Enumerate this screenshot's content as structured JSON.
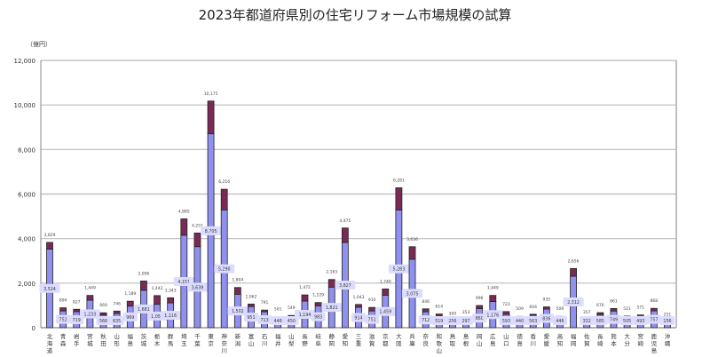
{
  "chart_data": {
    "type": "bar",
    "stacked": true,
    "title": "2023年都道府県別の住宅リフォーム市場規模の試算",
    "ylabel": "（億円）",
    "ylim": [
      0,
      12000
    ],
    "yticks": [
      "0",
      "2,000",
      "4,000",
      "6,000",
      "8,000",
      "10,000",
      "12,000"
    ],
    "grid": true,
    "colors": {
      "lower": "#9090f0",
      "upper": "#7a2a55",
      "label_box": "#dcdcff"
    },
    "categories": [
      "北海道",
      "青森",
      "岩手",
      "宮城",
      "秋田",
      "山形",
      "福島",
      "茨城",
      "栃木",
      "群馬",
      "埼玉",
      "千葉",
      "東京",
      "神奈川",
      "新潟",
      "富山",
      "石川",
      "福井",
      "山梨",
      "長野",
      "岐阜",
      "静岡",
      "愛知",
      "三重",
      "滋賀",
      "京都",
      "大阪",
      "兵庫",
      "奈良",
      "和歌山",
      "鳥取",
      "島根",
      "岡山",
      "広島",
      "山口",
      "徳島",
      "香川",
      "愛媛",
      "高知",
      "福岡",
      "佐賀",
      "長崎",
      "熊本",
      "大分",
      "宮崎",
      "鹿児島",
      "沖縄"
    ],
    "totals": [
      3829,
      894,
      827,
      1449,
      669,
      746,
      1189,
      2096,
      1442,
      1343,
      4885,
      4251,
      10175,
      6216,
      1804,
      1062,
      791,
      501,
      549,
      1472,
      1129,
      2163,
      4475,
      1043,
      910,
      1740,
      6281,
      3636,
      846,
      614,
      300,
      353,
      996,
      1449,
      723,
      509,
      604,
      935,
      509,
      2656,
      357,
      676,
      861,
      521,
      571,
      868,
      251
    ],
    "lower_values": [
      3524,
      752,
      719,
      1233,
      566,
      635,
      969,
      1681,
      1050,
      1116,
      4151,
      3639,
      8705,
      5290,
      1502,
      951,
      713,
      446,
      450,
      1194,
      983,
      1821,
      3827,
      914,
      751,
      1459,
      5283,
      3075,
      712,
      519,
      256,
      297,
      860,
      1176,
      593,
      440,
      563,
      836,
      446,
      2312,
      332,
      585,
      749,
      505,
      493,
      757,
      156
    ],
    "total_labels": [
      "3,829",
      "894",
      "827",
      "1,449",
      "669",
      "746",
      "1,189",
      "2,096",
      "1,442",
      "1,343",
      "4,885",
      "4,251",
      "10,175",
      "6,216",
      "1,804",
      "1,062",
      "791",
      "501",
      "549",
      "1,472",
      "1,129",
      "2,163",
      "4,475",
      "1,043",
      "910",
      "1,740",
      "6,281",
      "3,636",
      "846",
      "614",
      "300",
      "353",
      "996",
      "1,449",
      "723",
      "509",
      "604",
      "935",
      "509",
      "2,656",
      "357",
      "676",
      "861",
      "521",
      "571",
      "868",
      "251"
    ],
    "lower_labels": [
      "3,524",
      "752",
      "719",
      "1,233",
      "566",
      "635",
      "969",
      "1,681",
      "1,050",
      "1,116",
      "4,151",
      "3,639",
      "8,705",
      "5,290",
      "1,502",
      "951",
      "713",
      "446",
      "450",
      "1,194",
      "983",
      "1,821",
      "3,827",
      "914",
      "751",
      "1,459",
      "5,283",
      "3,075",
      "712",
      "519",
      "256",
      "297",
      "860",
      "1,176",
      "593",
      "440",
      "563",
      "836",
      "446",
      "2,312",
      "332",
      "585",
      "749",
      "505",
      "493",
      "757",
      "156"
    ]
  }
}
